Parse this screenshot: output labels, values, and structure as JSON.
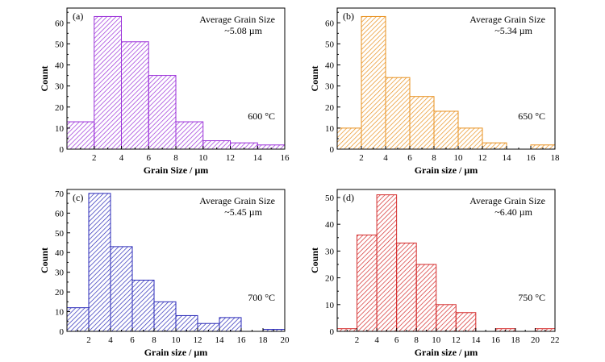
{
  "chart_data": [
    {
      "type": "bar",
      "panel_label": "(a)",
      "annotation_title": "Average Grain Size",
      "annotation_value": "~5.08 µm",
      "temperature": "600 °C",
      "xlabel": "Grain Size / µm",
      "ylabel": "Count",
      "xlim": [
        0,
        16
      ],
      "ylim": [
        0,
        67
      ],
      "x_ticks": [
        2,
        4,
        6,
        8,
        10,
        12,
        14,
        16
      ],
      "y_ticks": [
        0,
        10,
        20,
        30,
        40,
        50,
        60
      ],
      "bin_edges": [
        0,
        2,
        4,
        6,
        8,
        10,
        12,
        14,
        16
      ],
      "values": [
        13,
        63,
        51,
        35,
        13,
        4,
        3,
        2
      ],
      "color": "#9b30d9"
    },
    {
      "type": "bar",
      "panel_label": "(b)",
      "annotation_title": "Average Grain Size",
      "annotation_value": "~5.34 µm",
      "temperature": "650 °C",
      "xlabel": "Grain size / µm",
      "ylabel": "Count",
      "xlim": [
        0,
        18
      ],
      "ylim": [
        0,
        67
      ],
      "x_ticks": [
        2,
        4,
        6,
        8,
        10,
        12,
        14,
        16,
        18
      ],
      "y_ticks": [
        0,
        10,
        20,
        30,
        40,
        50,
        60
      ],
      "bin_edges": [
        0,
        2,
        4,
        6,
        8,
        10,
        12,
        14,
        16,
        18
      ],
      "values": [
        10,
        63,
        34,
        25,
        18,
        10,
        3,
        0,
        2
      ],
      "color": "#e8901e"
    },
    {
      "type": "bar",
      "panel_label": "(c)",
      "annotation_title": "Average Grain Size",
      "annotation_value": "~5.45 µm",
      "temperature": "700 °C",
      "xlabel": "Grain size / µm",
      "ylabel": "Count",
      "xlim": [
        0,
        20
      ],
      "ylim": [
        0,
        72
      ],
      "x_ticks": [
        2,
        4,
        6,
        8,
        10,
        12,
        14,
        16,
        18,
        20
      ],
      "y_ticks": [
        0,
        10,
        20,
        30,
        40,
        50,
        60,
        70
      ],
      "bin_edges": [
        0,
        2,
        4,
        6,
        8,
        10,
        12,
        14,
        16,
        18,
        20
      ],
      "values": [
        12,
        70,
        43,
        26,
        15,
        8,
        4,
        7,
        0,
        1
      ],
      "color": "#2a2ab8"
    },
    {
      "type": "bar",
      "panel_label": "(d)",
      "annotation_title": "Average Grain Size",
      "annotation_value": "~6.40 µm",
      "temperature": "750 °C",
      "xlabel": "Grain size / µm",
      "ylabel": "Count",
      "xlim": [
        0,
        22
      ],
      "ylim": [
        0,
        53
      ],
      "x_ticks": [
        2,
        4,
        6,
        8,
        10,
        12,
        14,
        16,
        18,
        20,
        22
      ],
      "y_ticks": [
        0,
        10,
        20,
        30,
        40,
        50
      ],
      "bin_edges": [
        0,
        2,
        4,
        6,
        8,
        10,
        12,
        14,
        16,
        18,
        20,
        22
      ],
      "values": [
        1,
        36,
        51,
        33,
        25,
        10,
        7,
        0,
        1,
        0,
        1
      ],
      "color": "#d42a2a"
    }
  ]
}
